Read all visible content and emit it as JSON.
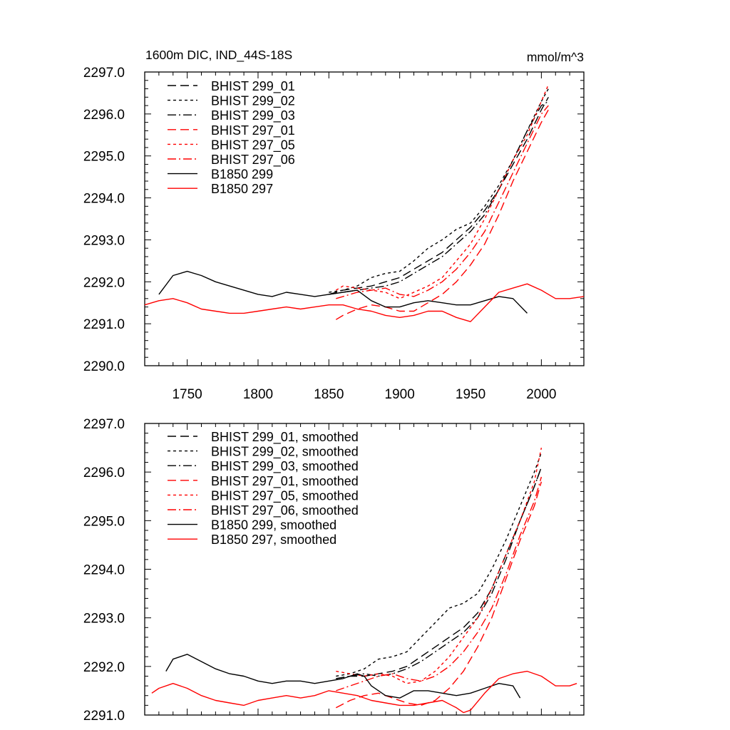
{
  "chart_data": [
    {
      "type": "line",
      "title": "1600m DIC, IND_44S-18S",
      "units_label": "mmol/m^3",
      "xlim": [
        1720,
        2030
      ],
      "ylim": [
        2290.0,
        2297.0
      ],
      "xticks": [
        1750,
        1800,
        1850,
        1900,
        1950,
        2000
      ],
      "yticks": [
        2290.0,
        2291.0,
        2292.0,
        2293.0,
        2294.0,
        2295.0,
        2296.0,
        2297.0
      ],
      "ytick_labels": [
        "2290.0",
        "2291.0",
        "2292.0",
        "2293.0",
        "2294.0",
        "2295.0",
        "2296.0",
        "2297.0"
      ],
      "legend_position": "top-left",
      "series": [
        {
          "name": "BHIST 299_01",
          "color": "#000000",
          "dash": "dashed",
          "x": [
            1850,
            1860,
            1870,
            1880,
            1890,
            1900,
            1910,
            1920,
            1930,
            1940,
            1950,
            1960,
            1970,
            1980,
            1990,
            2000,
            2005
          ],
          "y": [
            2291.7,
            2291.8,
            2291.85,
            2291.9,
            2292.0,
            2292.1,
            2292.3,
            2292.5,
            2292.7,
            2293.0,
            2293.3,
            2293.7,
            2294.2,
            2294.8,
            2295.4,
            2296.1,
            2296.4
          ]
        },
        {
          "name": "BHIST 299_02",
          "color": "#000000",
          "dash": "dotted",
          "x": [
            1850,
            1860,
            1870,
            1880,
            1890,
            1900,
            1910,
            1920,
            1930,
            1940,
            1950,
            1960,
            1970,
            1980,
            1990,
            2000,
            2005
          ],
          "y": [
            2291.75,
            2291.8,
            2291.9,
            2292.1,
            2292.2,
            2292.25,
            2292.5,
            2292.8,
            2293.0,
            2293.25,
            2293.4,
            2293.8,
            2294.3,
            2294.9,
            2295.6,
            2296.3,
            2296.6
          ]
        },
        {
          "name": "BHIST 299_03",
          "color": "#000000",
          "dash": "dashdot",
          "x": [
            1850,
            1860,
            1870,
            1880,
            1890,
            1900,
            1910,
            1920,
            1930,
            1940,
            1950,
            1960,
            1970,
            1980,
            1990,
            2000,
            2005
          ],
          "y": [
            2291.7,
            2291.75,
            2291.8,
            2291.85,
            2291.9,
            2292.0,
            2292.2,
            2292.4,
            2292.6,
            2292.9,
            2293.2,
            2293.6,
            2294.2,
            2294.9,
            2295.6,
            2296.2,
            2296.3
          ]
        },
        {
          "name": "BHIST 297_01",
          "color": "#ff0000",
          "dash": "dashed",
          "x": [
            1855,
            1860,
            1870,
            1880,
            1890,
            1900,
            1910,
            1920,
            1930,
            1940,
            1950,
            1960,
            1970,
            1980,
            1990,
            2000,
            2005
          ],
          "y": [
            2291.1,
            2291.2,
            2291.35,
            2291.45,
            2291.4,
            2291.3,
            2291.3,
            2291.5,
            2291.7,
            2292.0,
            2292.4,
            2292.9,
            2293.6,
            2294.4,
            2295.1,
            2295.8,
            2296.1
          ]
        },
        {
          "name": "BHIST 297_05",
          "color": "#ff0000",
          "dash": "dotted",
          "x": [
            1855,
            1860,
            1870,
            1880,
            1890,
            1900,
            1910,
            1920,
            1930,
            1940,
            1950,
            1960,
            1970,
            1980,
            1990,
            2000,
            2005
          ],
          "y": [
            2291.8,
            2291.9,
            2291.85,
            2291.8,
            2291.75,
            2291.6,
            2291.75,
            2291.9,
            2292.1,
            2292.5,
            2292.9,
            2293.5,
            2294.2,
            2294.9,
            2295.5,
            2296.3,
            2296.7
          ]
        },
        {
          "name": "BHIST 297_06",
          "color": "#ff0000",
          "dash": "dashdot",
          "x": [
            1855,
            1860,
            1870,
            1880,
            1890,
            1900,
            1910,
            1920,
            1930,
            1940,
            1950,
            1960,
            1970,
            1980,
            1990,
            2000,
            2005
          ],
          "y": [
            2291.6,
            2291.65,
            2291.75,
            2291.8,
            2291.85,
            2291.7,
            2291.65,
            2291.8,
            2292.0,
            2292.3,
            2292.7,
            2293.2,
            2293.9,
            2294.6,
            2295.3,
            2296.0,
            2296.2
          ]
        },
        {
          "name": "B1850 299",
          "color": "#000000",
          "dash": "solid",
          "x": [
            1730,
            1740,
            1750,
            1760,
            1770,
            1780,
            1790,
            1800,
            1810,
            1820,
            1830,
            1840,
            1850,
            1860,
            1870,
            1880,
            1890,
            1900,
            1910,
            1920,
            1930,
            1940,
            1950,
            1960,
            1970,
            1980,
            1990
          ],
          "y": [
            2291.7,
            2292.15,
            2292.25,
            2292.15,
            2292.0,
            2291.9,
            2291.8,
            2291.7,
            2291.65,
            2291.75,
            2291.7,
            2291.65,
            2291.7,
            2291.75,
            2291.8,
            2291.55,
            2291.4,
            2291.4,
            2291.5,
            2291.55,
            2291.5,
            2291.45,
            2291.45,
            2291.55,
            2291.65,
            2291.6,
            2291.25
          ]
        },
        {
          "name": "B1850 297",
          "color": "#ff0000",
          "dash": "solid",
          "x": [
            1720,
            1730,
            1740,
            1750,
            1760,
            1770,
            1780,
            1790,
            1800,
            1810,
            1820,
            1830,
            1840,
            1850,
            1860,
            1870,
            1880,
            1890,
            1900,
            1910,
            1920,
            1930,
            1940,
            1950,
            1960,
            1970,
            1980,
            1990,
            2000,
            2010,
            2020,
            2030
          ],
          "y": [
            2291.45,
            2291.55,
            2291.6,
            2291.5,
            2291.35,
            2291.3,
            2291.25,
            2291.25,
            2291.3,
            2291.35,
            2291.4,
            2291.35,
            2291.4,
            2291.45,
            2291.45,
            2291.35,
            2291.3,
            2291.2,
            2291.15,
            2291.2,
            2291.3,
            2291.3,
            2291.15,
            2291.05,
            2291.4,
            2291.75,
            2291.85,
            2291.95,
            2291.8,
            2291.6,
            2291.6,
            2291.65
          ]
        }
      ]
    },
    {
      "type": "line",
      "title": "",
      "xlim": [
        1720,
        2030
      ],
      "ylim": [
        2291.0,
        2297.0
      ],
      "xticks": [
        1750,
        1800,
        1850,
        1900,
        1950,
        2000
      ],
      "yticks": [
        2291.0,
        2292.0,
        2293.0,
        2294.0,
        2295.0,
        2296.0,
        2297.0
      ],
      "ytick_labels": [
        "2291.0",
        "2292.0",
        "2293.0",
        "2294.0",
        "2295.0",
        "2296.0",
        "2297.0"
      ],
      "legend_position": "top-left",
      "series": [
        {
          "name": "BHIST 299_01, smoothed",
          "color": "#000000",
          "dash": "dashed",
          "x": [
            1855,
            1865,
            1875,
            1885,
            1895,
            1905,
            1915,
            1925,
            1935,
            1945,
            1955,
            1965,
            1975,
            1985,
            1995,
            2000
          ],
          "y": [
            2291.75,
            2291.8,
            2291.8,
            2291.85,
            2291.9,
            2292.0,
            2292.2,
            2292.4,
            2292.6,
            2292.8,
            2293.1,
            2293.6,
            2294.3,
            2295.0,
            2295.7,
            2296.1
          ]
        },
        {
          "name": "BHIST 299_02, smoothed",
          "color": "#000000",
          "dash": "dotted",
          "x": [
            1855,
            1865,
            1875,
            1885,
            1895,
            1905,
            1915,
            1925,
            1935,
            1945,
            1955,
            1965,
            1975,
            1985,
            1995,
            2000
          ],
          "y": [
            2291.8,
            2291.85,
            2291.95,
            2292.15,
            2292.2,
            2292.3,
            2292.6,
            2292.9,
            2293.2,
            2293.3,
            2293.5,
            2294.0,
            2294.6,
            2295.3,
            2296.0,
            2296.4
          ]
        },
        {
          "name": "BHIST 299_03, smoothed",
          "color": "#000000",
          "dash": "dashdot",
          "x": [
            1855,
            1865,
            1875,
            1885,
            1895,
            1905,
            1915,
            1925,
            1935,
            1945,
            1955,
            1965,
            1975,
            1985,
            1995,
            2000
          ],
          "y": [
            2291.75,
            2291.8,
            2291.85,
            2291.8,
            2291.85,
            2291.95,
            2292.1,
            2292.3,
            2292.5,
            2292.7,
            2293.0,
            2293.5,
            2294.2,
            2295.0,
            2295.7,
            2296.1
          ]
        },
        {
          "name": "BHIST 297_01, smoothed",
          "color": "#ff0000",
          "dash": "dashed",
          "x": [
            1855,
            1865,
            1875,
            1885,
            1895,
            1905,
            1915,
            1925,
            1935,
            1945,
            1955,
            1965,
            1975,
            1985,
            1995,
            2000
          ],
          "y": [
            2291.15,
            2291.3,
            2291.4,
            2291.45,
            2291.35,
            2291.25,
            2291.2,
            2291.3,
            2291.55,
            2291.9,
            2292.4,
            2293.0,
            2293.8,
            2294.6,
            2295.3,
            2295.8
          ]
        },
        {
          "name": "BHIST 297_05, smoothed",
          "color": "#ff0000",
          "dash": "dotted",
          "x": [
            1855,
            1865,
            1875,
            1885,
            1895,
            1905,
            1915,
            1925,
            1935,
            1945,
            1955,
            1965,
            1975,
            1985,
            1995,
            2000
          ],
          "y": [
            2291.9,
            2291.85,
            2291.8,
            2291.85,
            2291.8,
            2291.65,
            2291.7,
            2291.9,
            2292.2,
            2292.6,
            2293.0,
            2293.6,
            2294.3,
            2295.0,
            2295.8,
            2296.5
          ]
        },
        {
          "name": "BHIST 297_06, smoothed",
          "color": "#ff0000",
          "dash": "dashdot",
          "x": [
            1855,
            1865,
            1875,
            1885,
            1895,
            1905,
            1915,
            1925,
            1935,
            1945,
            1955,
            1965,
            1975,
            1985,
            1995,
            2000
          ],
          "y": [
            2291.5,
            2291.6,
            2291.7,
            2291.8,
            2291.85,
            2291.75,
            2291.7,
            2291.8,
            2292.0,
            2292.3,
            2292.7,
            2293.2,
            2293.9,
            2294.7,
            2295.4,
            2295.9
          ]
        },
        {
          "name": "B1850 299, smoothed",
          "color": "#000000",
          "dash": "solid",
          "x": [
            1735,
            1740,
            1745,
            1750,
            1760,
            1770,
            1780,
            1790,
            1800,
            1810,
            1820,
            1830,
            1840,
            1850,
            1860,
            1870,
            1875,
            1880,
            1890,
            1900,
            1910,
            1920,
            1930,
            1940,
            1950,
            1960,
            1970,
            1980,
            1985
          ],
          "y": [
            2291.9,
            2292.15,
            2292.2,
            2292.25,
            2292.1,
            2291.95,
            2291.85,
            2291.8,
            2291.7,
            2291.65,
            2291.7,
            2291.7,
            2291.65,
            2291.7,
            2291.75,
            2291.85,
            2291.8,
            2291.6,
            2291.4,
            2291.35,
            2291.5,
            2291.5,
            2291.45,
            2291.4,
            2291.45,
            2291.55,
            2291.65,
            2291.6,
            2291.35
          ]
        },
        {
          "name": "B1850 297, smoothed",
          "color": "#ff0000",
          "dash": "solid",
          "x": [
            1725,
            1730,
            1740,
            1750,
            1760,
            1770,
            1780,
            1790,
            1800,
            1810,
            1820,
            1830,
            1840,
            1850,
            1860,
            1870,
            1880,
            1890,
            1900,
            1910,
            1920,
            1930,
            1940,
            1945,
            1950,
            1960,
            1970,
            1980,
            1990,
            2000,
            2010,
            2020,
            2025
          ],
          "y": [
            2291.45,
            2291.55,
            2291.65,
            2291.55,
            2291.4,
            2291.3,
            2291.25,
            2291.2,
            2291.3,
            2291.35,
            2291.4,
            2291.35,
            2291.4,
            2291.5,
            2291.45,
            2291.4,
            2291.3,
            2291.25,
            2291.2,
            2291.2,
            2291.25,
            2291.3,
            2291.15,
            2291.05,
            2291.1,
            2291.45,
            2291.75,
            2291.85,
            2291.9,
            2291.8,
            2291.6,
            2291.6,
            2291.65
          ]
        }
      ]
    }
  ]
}
